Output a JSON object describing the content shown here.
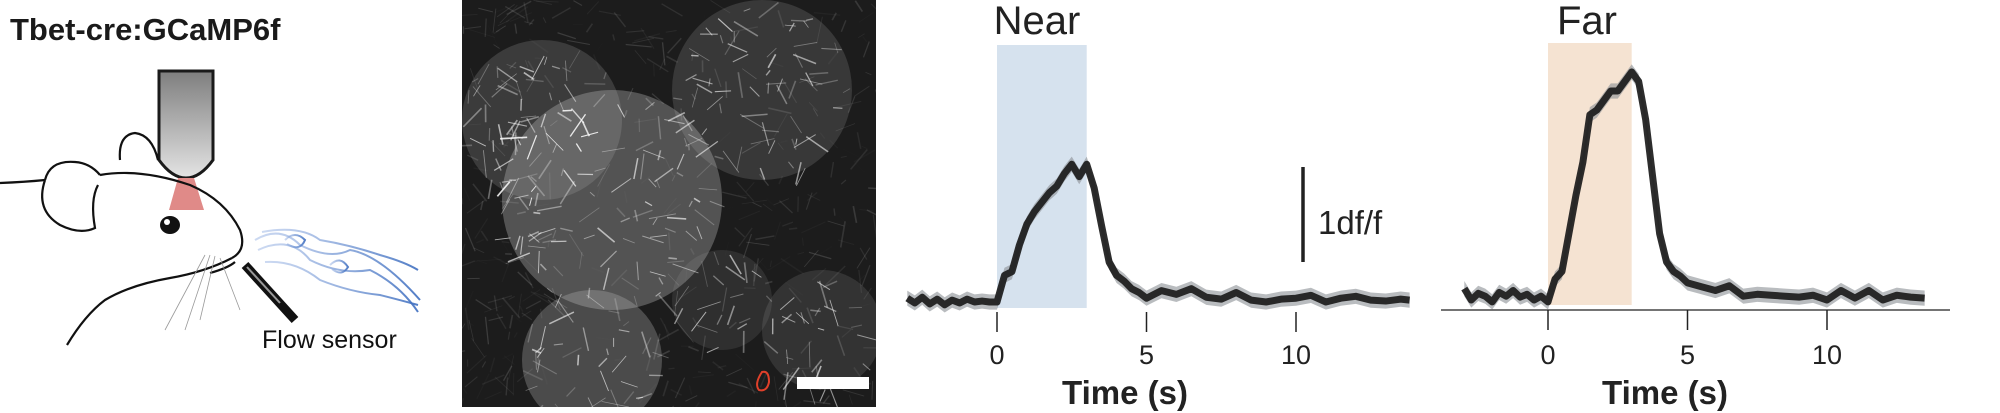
{
  "schematic": {
    "title": "Tbet-cre:GCaMP6f",
    "sensor_label": "Flow sensor",
    "icons": [
      "mouse-head-illustration",
      "objective-lens-icon",
      "laser-cone-icon",
      "flow-sensor-icon",
      "odor-plume-icon"
    ],
    "colors": {
      "laser": "#e08a88",
      "plume": "#3f6fc0",
      "objective": "#8a8a8a"
    }
  },
  "micrograph": {
    "roi_color": "#e0402a",
    "scale_bar_color": "#ffffff"
  },
  "chart_data": [
    {
      "type": "line",
      "title": "Near",
      "xlabel": "Time (s)",
      "ylabel": "",
      "xticks": [
        "0",
        "5",
        "10"
      ],
      "xlim": [
        -3,
        14
      ],
      "stimulus_window": [
        0,
        3
      ],
      "stimulus_color": "#d6e2ee",
      "scale_bar": {
        "value": 1,
        "label": "1df/f"
      },
      "axis_line": false,
      "series": [
        {
          "x": [
            -3,
            -2.75,
            -2.5,
            -2.25,
            -2,
            -1.75,
            -1.5,
            -1.25,
            -1,
            -0.75,
            -0.5,
            -0.25,
            0,
            0.25,
            0.5,
            0.75,
            1,
            1.25,
            1.5,
            1.75,
            2,
            2.25,
            2.5,
            2.75,
            3,
            3.25,
            3.5,
            3.75,
            4,
            4.25,
            4.5,
            4.75,
            5,
            5.5,
            6,
            6.5,
            7,
            7.5,
            8,
            8.5,
            9,
            9.5,
            10,
            10.5,
            11,
            11.5,
            12,
            12.5,
            13,
            13.5,
            13.8
          ],
          "y": [
            0.04,
            -0.01,
            0.05,
            -0.02,
            0.03,
            -0.03,
            0.02,
            -0.01,
            0.03,
            0.0,
            0.01,
            0.0,
            0.0,
            0.28,
            0.32,
            0.6,
            0.82,
            0.95,
            1.05,
            1.15,
            1.22,
            1.35,
            1.45,
            1.32,
            1.45,
            1.2,
            0.8,
            0.42,
            0.28,
            0.22,
            0.14,
            0.1,
            0.04,
            0.12,
            0.08,
            0.14,
            0.05,
            0.03,
            0.1,
            0.02,
            0.0,
            0.03,
            0.04,
            0.07,
            0.0,
            0.04,
            0.06,
            0.02,
            0.01,
            0.03,
            0.02
          ]
        }
      ]
    },
    {
      "type": "line",
      "title": "Far",
      "xlabel": "Time (s)",
      "ylabel": "",
      "xticks": [
        "0",
        "5",
        "10"
      ],
      "xlim": [
        -3,
        14
      ],
      "stimulus_window": [
        0,
        3
      ],
      "stimulus_color": "#f5e3d2",
      "axis_line": true,
      "series": [
        {
          "x": [
            -3,
            -2.75,
            -2.5,
            -2.25,
            -2,
            -1.75,
            -1.5,
            -1.25,
            -1,
            -0.75,
            -0.5,
            -0.25,
            0,
            0.25,
            0.5,
            0.75,
            1,
            1.25,
            1.5,
            1.75,
            2,
            2.25,
            2.5,
            2.75,
            3,
            3.25,
            3.5,
            3.75,
            4,
            4.25,
            4.5,
            4.75,
            5,
            5.5,
            6,
            6.5,
            7,
            7.5,
            8,
            8.5,
            9,
            9.5,
            10,
            10.5,
            11,
            11.5,
            12,
            12.5,
            13,
            13.5
          ],
          "y": [
            0.12,
            0.0,
            0.07,
            0.04,
            -0.02,
            0.08,
            0.04,
            0.1,
            0.03,
            0.06,
            0.0,
            0.04,
            -0.02,
            0.22,
            0.3,
            0.7,
            1.1,
            1.45,
            1.95,
            2.0,
            2.1,
            2.2,
            2.2,
            2.3,
            2.4,
            2.3,
            1.9,
            1.3,
            0.7,
            0.4,
            0.3,
            0.25,
            0.18,
            0.14,
            0.1,
            0.15,
            0.04,
            0.06,
            0.05,
            0.04,
            0.03,
            0.05,
            0.0,
            0.1,
            0.02,
            0.1,
            0.0,
            0.05,
            0.03,
            0.02
          ]
        }
      ]
    }
  ]
}
